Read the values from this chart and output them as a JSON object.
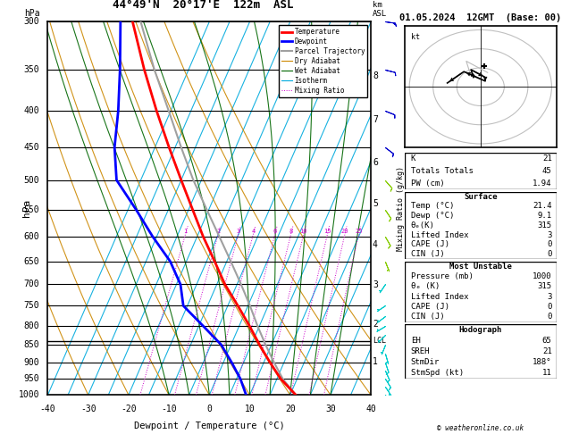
{
  "title_left": "44°49'N  20°17'E  122m  ASL",
  "title_right": "01.05.2024  12GMT  (Base: 00)",
  "xlabel": "Dewpoint / Temperature (°C)",
  "ylabel_left": "hPa",
  "ylabel_right2": "Mixing Ratio (g/kg)",
  "T_min": -40,
  "T_max": 40,
  "P_min": 300,
  "P_max": 1000,
  "skew_deg": 45,
  "temp_profile": {
    "pressure": [
      1000,
      950,
      900,
      850,
      800,
      750,
      700,
      650,
      600,
      550,
      500,
      450,
      400,
      350,
      300
    ],
    "temperature": [
      21.4,
      16.0,
      11.5,
      7.0,
      2.5,
      -2.5,
      -8.0,
      -13.0,
      -18.5,
      -24.0,
      -30.0,
      -36.5,
      -43.5,
      -51.0,
      -59.0
    ]
  },
  "dewp_profile": {
    "pressure": [
      1000,
      950,
      900,
      850,
      800,
      750,
      700,
      650,
      600,
      550,
      500,
      450,
      400,
      350,
      300
    ],
    "temperature": [
      9.1,
      6.0,
      2.0,
      -2.5,
      -9.0,
      -16.0,
      -19.0,
      -24.0,
      -31.0,
      -38.0,
      -46.0,
      -50.0,
      -53.0,
      -57.0,
      -62.0
    ]
  },
  "parcel_profile": {
    "pressure": [
      1000,
      950,
      900,
      850,
      800,
      750,
      700,
      650,
      600,
      550,
      500,
      450,
      400,
      350,
      300
    ],
    "temperature": [
      21.4,
      16.5,
      12.5,
      8.5,
      4.5,
      0.5,
      -4.0,
      -9.0,
      -14.5,
      -20.5,
      -27.0,
      -33.5,
      -40.5,
      -48.5,
      -57.0
    ]
  },
  "lcl_pressure": 840,
  "pressure_ticks": [
    300,
    350,
    400,
    450,
    500,
    550,
    600,
    650,
    700,
    750,
    800,
    850,
    900,
    950,
    1000
  ],
  "isotherm_temps": [
    -40,
    -35,
    -30,
    -25,
    -20,
    -15,
    -10,
    -5,
    0,
    5,
    10,
    15,
    20,
    25,
    30,
    35,
    40
  ],
  "dry_adiabat_surface_temps": [
    -40,
    -30,
    -20,
    -10,
    0,
    10,
    20,
    30,
    40,
    50
  ],
  "wet_adiabat_surface_temps": [
    -10,
    -5,
    0,
    5,
    10,
    15,
    20,
    25,
    30
  ],
  "mixing_ratio_values": [
    1,
    2,
    3,
    4,
    6,
    8,
    10,
    15,
    20,
    25
  ],
  "colors": {
    "temperature": "#ff0000",
    "dewpoint": "#0000ff",
    "parcel": "#a0a0a0",
    "dry_adiabat": "#cc8800",
    "wet_adiabat": "#006600",
    "isotherm": "#00aadd",
    "mixing_ratio": "#cc00cc",
    "isobar": "#000000",
    "lcl": "#000000"
  },
  "km_ticks": {
    "values": [
      1,
      2,
      3,
      4,
      5,
      6,
      7,
      8
    ],
    "pressures": [
      899,
      795,
      701,
      616,
      540,
      472,
      411,
      357
    ]
  },
  "wind_barbs": {
    "pressure": [
      1000,
      975,
      950,
      925,
      900,
      875,
      850,
      825,
      800,
      775,
      750,
      700,
      650,
      600,
      550,
      500,
      450,
      400,
      350,
      300
    ],
    "u_kt": [
      -3,
      -4,
      -5,
      -4,
      -3,
      -2,
      2,
      4,
      5,
      4,
      3,
      2,
      -2,
      -4,
      -6,
      -7,
      -8,
      -10,
      -12,
      -14
    ],
    "v_kt": [
      5,
      6,
      8,
      9,
      9,
      7,
      5,
      4,
      3,
      3,
      2,
      3,
      5,
      7,
      9,
      8,
      6,
      4,
      3,
      2
    ]
  },
  "wind_barb_colors": {
    "low": "#00cccc",
    "mid": "#88cc00",
    "high": "#0000cc"
  },
  "stats": {
    "K": 21,
    "TT": 45,
    "PW": 1.94,
    "surf_temp": 21.4,
    "surf_dewp": 9.1,
    "surf_theta_e": 315,
    "surf_li": 3,
    "surf_cape": 0,
    "surf_cin": 0,
    "mu_pressure": 1000,
    "mu_theta_e": 315,
    "mu_li": 3,
    "mu_cape": 0,
    "mu_cin": 0,
    "eh": 65,
    "sreh": 21,
    "stm_dir": 188,
    "stm_spd": 11
  },
  "copyright": "© weatheronline.co.uk",
  "background": "#ffffff"
}
